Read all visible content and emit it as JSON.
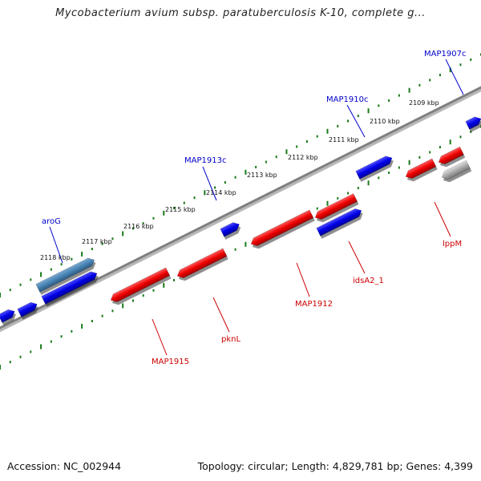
{
  "title": "Mycobacterium avium subsp. paratuberculosis K-10, complete g...",
  "footer": {
    "accession": "Accession: NC_002944",
    "topology": "Topology: circular; Length: 4,829,781 bp; Genes: 4,399"
  },
  "kbp_labels": [
    "2109 kbp",
    "2110 kbp",
    "2111 kbp",
    "2112 kbp",
    "2113 kbp",
    "2114 kbp",
    "2115 kbp",
    "2116 kbp",
    "2117 kbp",
    "2118 kbp"
  ],
  "forward_genes": [
    "aroG",
    "MAP1913c",
    "MAP1910c",
    "MAP1907c"
  ],
  "reverse_genes": [
    "MAP1915",
    "pknL",
    "MAP1912",
    "idsA2_1",
    "lppM"
  ],
  "colors": {
    "forward_label": "#0000cc",
    "reverse_label": "#cc0000",
    "forward_feature": "#0000e0",
    "reverse_feature": "#ee0000",
    "highlight_feature": "#4682b4",
    "other_feature": "#aaaaaa",
    "backbone": "#808080",
    "ruler": "#1a7a1a"
  }
}
